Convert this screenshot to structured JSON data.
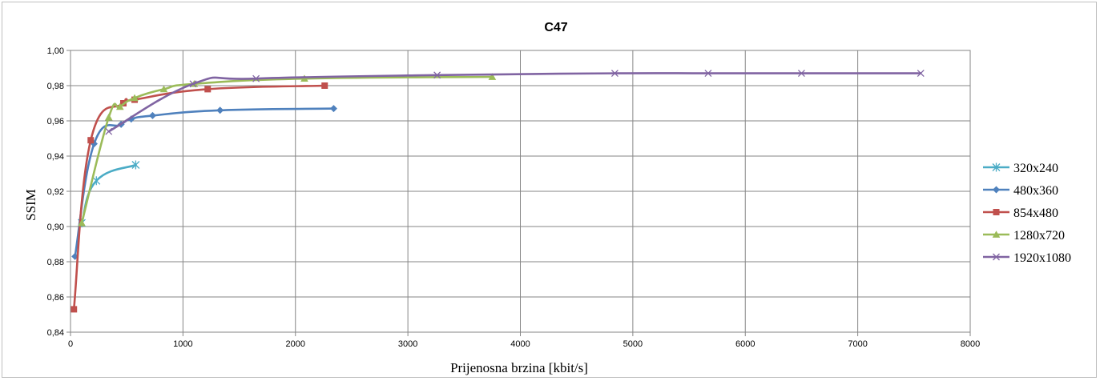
{
  "chart_data": {
    "type": "line",
    "title": "C47",
    "xlabel": "Prijenosna brzina [kbit/s]",
    "ylabel": "SSIM",
    "xlim": [
      0,
      8000
    ],
    "ylim": [
      0.84,
      1.0
    ],
    "x_ticks": [
      0,
      1000,
      2000,
      3000,
      4000,
      5000,
      6000,
      7000,
      8000
    ],
    "x_tick_labels": [
      "0",
      "1000",
      "2000",
      "3000",
      "4000",
      "5000",
      "6000",
      "7000",
      "8000"
    ],
    "y_ticks": [
      0.84,
      0.86,
      0.88,
      0.9,
      0.92,
      0.94,
      0.96,
      0.98,
      1.0
    ],
    "y_tick_labels": [
      "0,84",
      "0,86",
      "0,88",
      "0,90",
      "0,92",
      "0,94",
      "0,96",
      "0,98",
      "1,00"
    ],
    "grid": true,
    "smooth": true,
    "legend_position": "right",
    "series": [
      {
        "name": "320x240",
        "color": "#4bacc6",
        "marker": "star",
        "x": [
          100,
          230,
          580
        ],
        "y": [
          0.902,
          0.926,
          0.935
        ]
      },
      {
        "name": "480x360",
        "color": "#4f81bd",
        "marker": "diamond",
        "x": [
          40,
          210,
          450,
          540,
          730,
          1330,
          2340
        ],
        "y": [
          0.883,
          0.947,
          0.958,
          0.961,
          0.963,
          0.966,
          0.967
        ]
      },
      {
        "name": "854x480",
        "color": "#c0504d",
        "marker": "square",
        "x": [
          30,
          180,
          470,
          570,
          1220,
          2260
        ],
        "y": [
          0.853,
          0.949,
          0.97,
          0.972,
          0.978,
          0.98
        ]
      },
      {
        "name": "1280x720",
        "color": "#9bbb59",
        "marker": "triangle",
        "x": [
          100,
          340,
          440,
          570,
          830,
          1100,
          2080,
          3750
        ],
        "y": [
          0.902,
          0.962,
          0.968,
          0.973,
          0.978,
          0.981,
          0.984,
          0.985
        ]
      },
      {
        "name": "1920x1080",
        "color": "#8064a2",
        "marker": "x",
        "x": [
          340,
          1090,
          1650,
          3260,
          4840,
          5670,
          6500,
          7560
        ],
        "y": [
          0.954,
          0.981,
          0.984,
          0.986,
          0.987,
          0.987,
          0.987,
          0.987
        ]
      }
    ]
  }
}
